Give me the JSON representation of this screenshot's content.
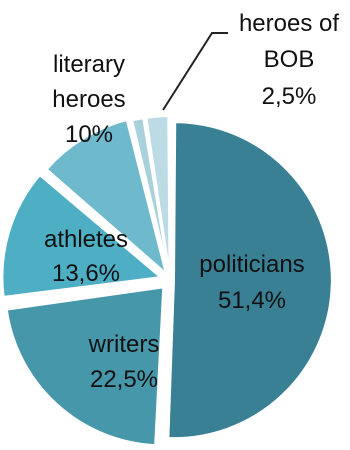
{
  "chart_data": {
    "type": "pie",
    "slices": [
      {
        "key": "politicians",
        "label": "politicians",
        "value_label": "51,4%",
        "value": 51.4,
        "color": "#3a8095"
      },
      {
        "key": "writers",
        "label": "writers",
        "value_label": "22,5%",
        "value": 22.5,
        "color": "#4797ab"
      },
      {
        "key": "athletes",
        "label": "athletes",
        "value_label": "13,6%",
        "value": 13.6,
        "color": "#4daec4"
      },
      {
        "key": "literary-heroes",
        "label": "literary heroes",
        "value_label": "10%",
        "value": 10.0,
        "color": "#6fb9cc"
      },
      {
        "key": "minor-slice",
        "label": "",
        "value_label": "",
        "value": 1.4,
        "color": "#a8d1dc"
      },
      {
        "key": "heroes-of-bob",
        "label": "heroes of BOB",
        "value_label": "2,5%",
        "value": 2.5,
        "color": "#bddbe4"
      }
    ],
    "labels": {
      "politicians": {
        "line1": "politicians",
        "line2": "51,4%"
      },
      "writers": {
        "line1": "writers",
        "line2": "22,5%"
      },
      "athletes": {
        "line1": "athletes",
        "line2": "13,6%"
      },
      "literary_heroes": {
        "line1": "literary",
        "line2": "heroes",
        "line3": "10%"
      },
      "heroes_of_bob": {
        "line1": "heroes of",
        "line2": "BOB",
        "line3": "2,5%"
      }
    },
    "exploded": true,
    "legend": "none"
  }
}
